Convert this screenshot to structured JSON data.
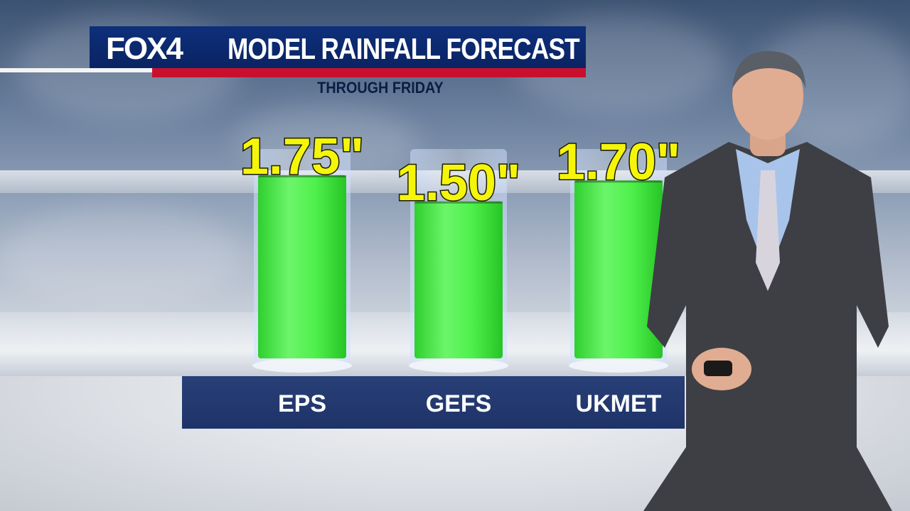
{
  "header": {
    "logo": "FOX4",
    "title": "MODEL RAINFALL FORECAST",
    "subtitle": "THROUGH FRIDAY"
  },
  "colors": {
    "header_blue": "#0a2463",
    "header_red": "#c8102e",
    "bar_green": "#33e036",
    "value_yellow": "#f5f50a",
    "label_band": "#223a70"
  },
  "chart_data": {
    "type": "bar",
    "categories": [
      "EPS",
      "GEFS",
      "UKMET"
    ],
    "values": [
      1.75,
      1.5,
      1.7
    ],
    "value_labels": [
      "1.75\"",
      "1.50\"",
      "1.70\""
    ],
    "unit": "inches",
    "title": "MODEL RAINFALL FORECAST",
    "subtitle": "THROUGH FRIDAY",
    "ylim": [
      0,
      2.0
    ],
    "grid": false,
    "legend": "none"
  }
}
